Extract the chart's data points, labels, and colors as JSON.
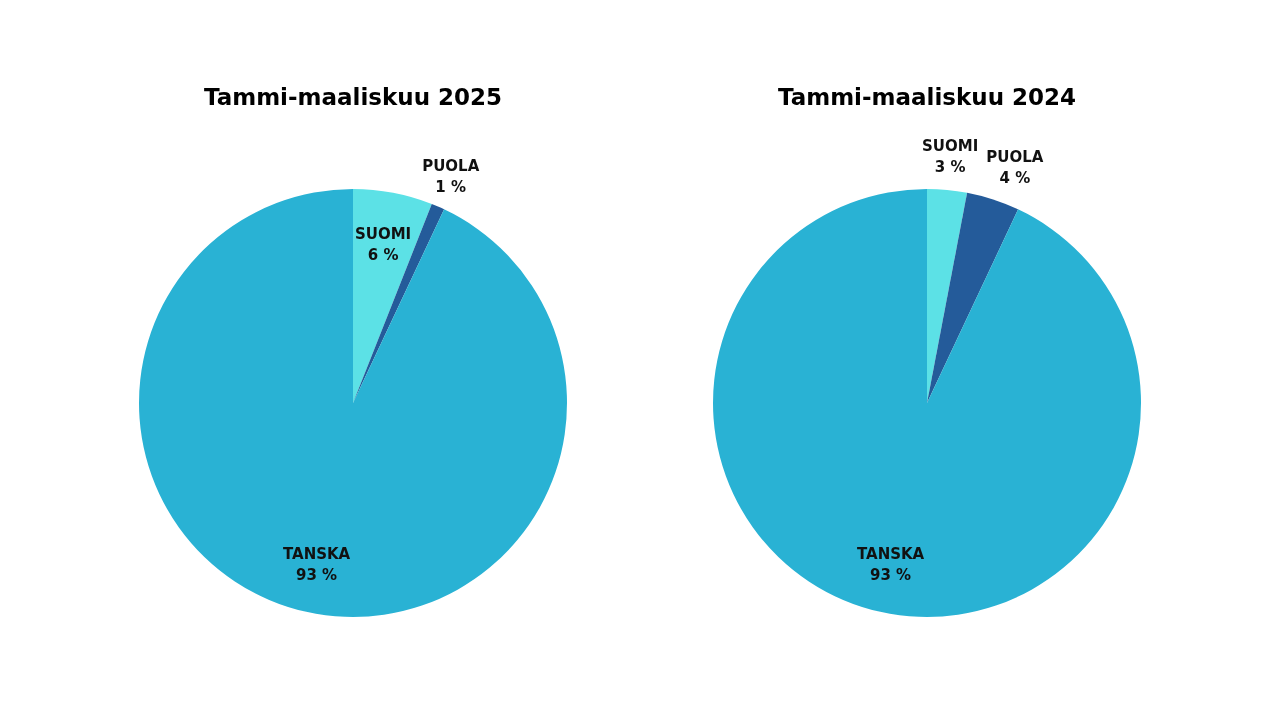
{
  "chart_data": [
    {
      "type": "pie",
      "title": "Tammi-maaliskuu 2025",
      "categories": [
        "SUOMI",
        "PUOLA",
        "TANSKA"
      ],
      "values": [
        6,
        1,
        93
      ],
      "value_labels": [
        "6 %",
        "1 %",
        "93 %"
      ],
      "colors": [
        "#5ce1e6",
        "#245b9a",
        "#29b2d4"
      ],
      "legend": false
    },
    {
      "type": "pie",
      "title": "Tammi-maaliskuu 2024",
      "categories": [
        "SUOMI",
        "PUOLA",
        "TANSKA"
      ],
      "values": [
        3,
        4,
        93
      ],
      "value_labels": [
        "3 %",
        "4 %",
        "93 %"
      ],
      "colors": [
        "#5ce1e6",
        "#245b9a",
        "#29b2d4"
      ],
      "legend": false
    }
  ]
}
